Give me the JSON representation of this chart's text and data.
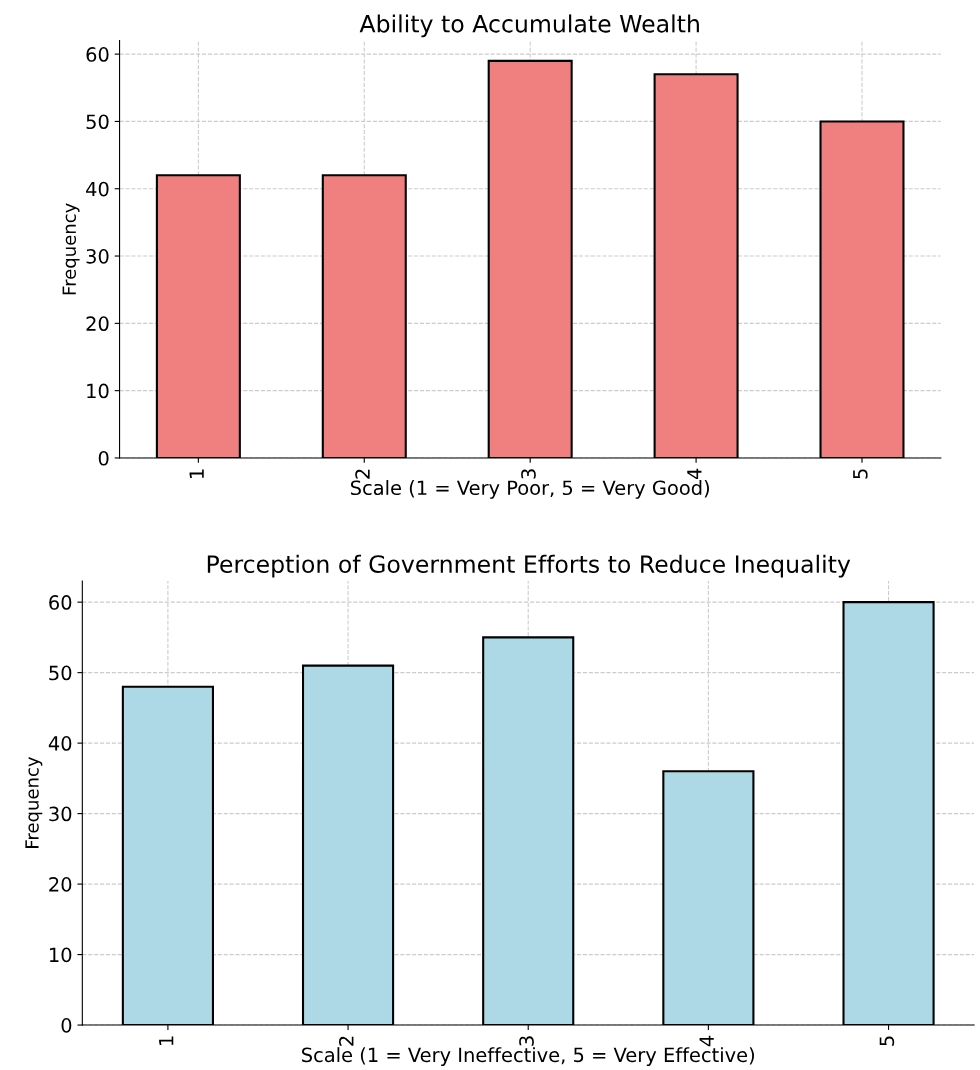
{
  "chart_data": [
    {
      "type": "bar",
      "title": "Ability to Accumulate Wealth",
      "xlabel": "Scale (1 = Very Poor, 5 = Very Good)",
      "ylabel": "Frequency",
      "categories": [
        "1",
        "2",
        "3",
        "4",
        "5"
      ],
      "values": [
        42,
        42,
        59,
        57,
        50
      ],
      "color": "#f08080",
      "ylim": [
        0,
        62
      ],
      "yticks": [
        0,
        10,
        20,
        30,
        40,
        50,
        60
      ],
      "grid": true
    },
    {
      "type": "bar",
      "title": "Perception of Government Efforts to Reduce Inequality",
      "xlabel": "Scale (1 = Very Ineffective, 5 = Very Effective)",
      "ylabel": "Frequency",
      "categories": [
        "1",
        "2",
        "3",
        "4",
        "5"
      ],
      "values": [
        48,
        51,
        55,
        36,
        60
      ],
      "color": "#add8e6",
      "ylim": [
        0,
        63
      ],
      "yticks": [
        0,
        10,
        20,
        30,
        40,
        50,
        60
      ],
      "grid": true
    }
  ]
}
